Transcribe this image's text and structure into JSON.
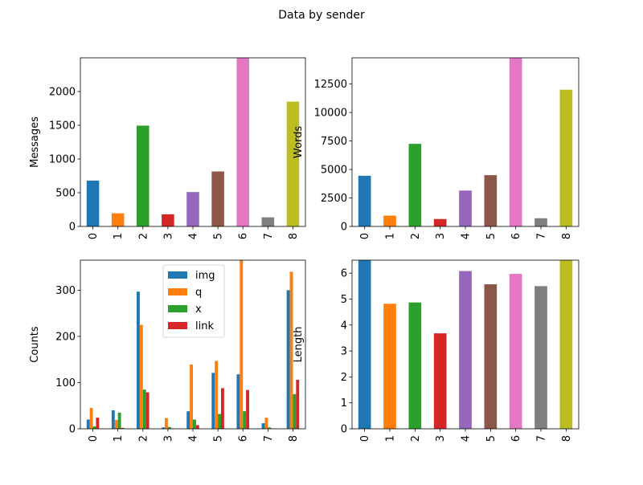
{
  "figure": {
    "title": "Data by sender"
  },
  "chart_data": [
    {
      "type": "bar",
      "xlabel": "",
      "ylabel": "Messages",
      "categories": [
        "0",
        "1",
        "2",
        "3",
        "4",
        "5",
        "6",
        "7",
        "8"
      ],
      "values": [
        680,
        195,
        1495,
        180,
        510,
        815,
        2500,
        135,
        1850
      ],
      "ylim": [
        0,
        2500
      ],
      "yticks": [
        0,
        500,
        1000,
        1500,
        2000
      ],
      "bar_colors": [
        "#1f77b4",
        "#ff7f0e",
        "#2ca02c",
        "#d62728",
        "#9467bd",
        "#8c564b",
        "#e377c2",
        "#7f7f7f",
        "#bcbd22"
      ]
    },
    {
      "type": "bar",
      "xlabel": "",
      "ylabel": "Words",
      "categories": [
        "0",
        "1",
        "2",
        "3",
        "4",
        "5",
        "6",
        "7",
        "8"
      ],
      "values": [
        4450,
        950,
        7250,
        650,
        3150,
        4500,
        14800,
        720,
        12000
      ],
      "ylim": [
        0,
        14800
      ],
      "yticks": [
        0,
        2500,
        5000,
        7500,
        10000,
        12500
      ],
      "bar_colors": [
        "#1f77b4",
        "#ff7f0e",
        "#2ca02c",
        "#d62728",
        "#9467bd",
        "#8c564b",
        "#e377c2",
        "#7f7f7f",
        "#bcbd22"
      ]
    },
    {
      "type": "bar",
      "xlabel": "",
      "ylabel": "Counts",
      "categories": [
        "0",
        "1",
        "2",
        "3",
        "4",
        "5",
        "6",
        "7",
        "8"
      ],
      "series": [
        {
          "name": "img",
          "color": "#1f77b4",
          "values": [
            20,
            40,
            297,
            3,
            38,
            121,
            118,
            12,
            300
          ]
        },
        {
          "name": "q",
          "color": "#ff7f0e",
          "values": [
            45,
            19,
            225,
            23,
            139,
            147,
            365,
            24,
            340
          ]
        },
        {
          "name": "x",
          "color": "#2ca02c",
          "values": [
            5,
            35,
            85,
            4,
            20,
            32,
            38,
            3,
            75
          ]
        },
        {
          "name": "link",
          "color": "#d62728",
          "values": [
            24,
            2,
            79,
            1,
            8,
            88,
            84,
            1,
            106
          ]
        }
      ],
      "ylim": [
        0,
        365
      ],
      "yticks": [
        0,
        100,
        200,
        300
      ],
      "legend": "top-center"
    },
    {
      "type": "bar",
      "xlabel": "",
      "ylabel": "Length",
      "categories": [
        "0",
        "1",
        "2",
        "3",
        "4",
        "5",
        "6",
        "7",
        "8"
      ],
      "values": [
        6.5,
        4.82,
        4.87,
        3.68,
        6.08,
        5.57,
        5.97,
        5.5,
        6.5
      ],
      "ylim": [
        0,
        6.5
      ],
      "yticks": [
        0,
        1,
        2,
        3,
        4,
        5,
        6
      ],
      "bar_colors": [
        "#1f77b4",
        "#ff7f0e",
        "#2ca02c",
        "#d62728",
        "#9467bd",
        "#8c564b",
        "#e377c2",
        "#7f7f7f",
        "#bcbd22"
      ]
    }
  ]
}
